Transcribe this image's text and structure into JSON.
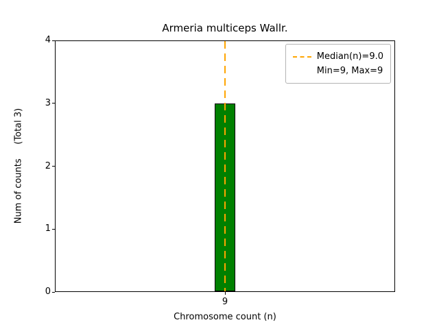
{
  "chart_data": {
    "type": "bar",
    "title": "Armeria multiceps Wallr.",
    "xlabel": "Chromosome count (n)",
    "ylabel": "Num of counts     (Total 3)",
    "total_label": "(Total 3)",
    "categories": [
      "9"
    ],
    "values": [
      3
    ],
    "ylim": [
      0,
      4
    ],
    "yticks": [
      0,
      1,
      2,
      3,
      4
    ],
    "grid": false,
    "bar_color": "#008000",
    "bar_edge_color": "#000000",
    "median_line": {
      "value": 9.0,
      "color": "#FFA500",
      "style": "dashed",
      "orientation": "vertical"
    },
    "legend": {
      "position": "top-right",
      "entries": [
        {
          "label": "Median(n)=9.0",
          "marker": "dashed-line",
          "color": "#FFA500"
        },
        {
          "label": "Min=9, Max=9",
          "marker": "none"
        }
      ]
    }
  }
}
